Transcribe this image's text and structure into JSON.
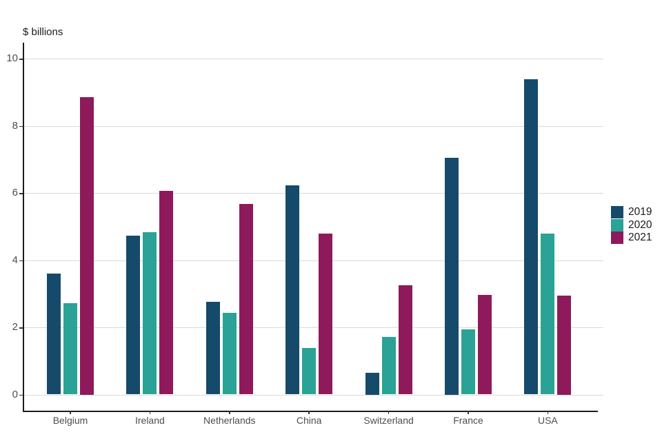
{
  "title": "$ billions",
  "colors": {
    "series_2019": "#164A6B",
    "series_2020": "#2AA296",
    "series_2021": "#8E1A5B",
    "gridline": "#d9d9d9",
    "axis_line": "#1a1a1a",
    "tick_label": "#4d4d4d"
  },
  "y_axis": {
    "tick_labels": [
      "0",
      "2",
      "4",
      "6",
      "8",
      "10"
    ]
  },
  "x_axis": {
    "tick_labels": [
      "Belgium",
      "Ireland",
      "Netherlands",
      "China",
      "Switzerland",
      "France",
      "USA"
    ]
  },
  "legend": {
    "position": "right",
    "items": [
      {
        "label": "2019",
        "color": "#164A6B"
      },
      {
        "label": "2020",
        "color": "#2AA296"
      },
      {
        "label": "2021",
        "color": "#8E1A5B"
      }
    ]
  },
  "chart_data": {
    "type": "bar",
    "title": "$ billions",
    "categories": [
      "Belgium",
      "Ireland",
      "Netherlands",
      "China",
      "Switzerland",
      "France",
      "USA"
    ],
    "series": [
      {
        "name": "2019",
        "color": "#164A6B",
        "values": [
          3.61,
          4.72,
          2.76,
          6.23,
          0.65,
          7.05,
          9.39
        ]
      },
      {
        "name": "2020",
        "color": "#2AA296",
        "values": [
          2.72,
          4.84,
          2.44,
          1.38,
          1.72,
          1.94,
          4.78
        ]
      },
      {
        "name": "2021",
        "color": "#8E1A5B",
        "values": [
          8.85,
          6.07,
          5.68,
          4.78,
          3.26,
          2.97,
          2.95
        ]
      }
    ],
    "xlabel": "",
    "ylabel": "$ billions",
    "ylim": [
      0,
      10.5
    ],
    "yticks": [
      0,
      2,
      4,
      6,
      8,
      10
    ],
    "grid": true,
    "legend_position": "right"
  }
}
